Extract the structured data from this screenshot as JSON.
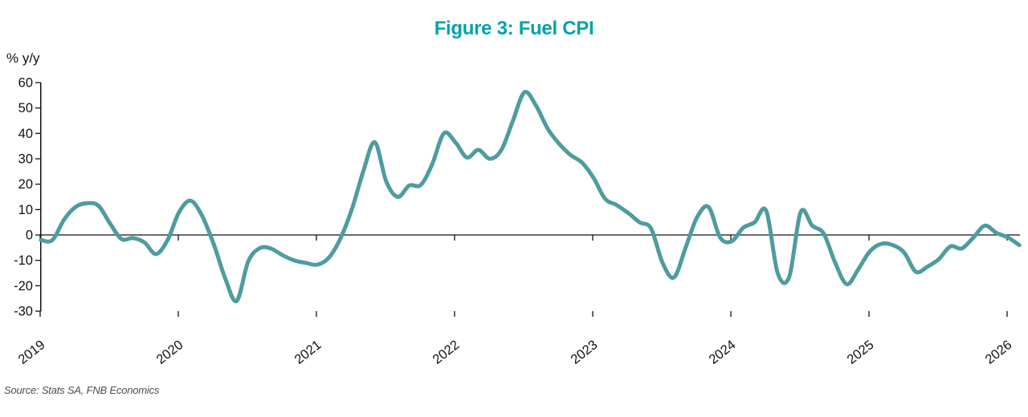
{
  "title": "Figure 3: Fuel CPI",
  "y_axis_label": "% y/y",
  "source": "Source: Stats SA, FNB Economics",
  "colors": {
    "title": "#00A3AD",
    "line": "#4E9C9E",
    "axis": "#111111",
    "source_text": "#4d4d4d"
  },
  "chart_data": {
    "type": "line",
    "title": "Figure 3: Fuel CPI",
    "ylabel": "% y/y",
    "ylim": [
      -30,
      60
    ],
    "y_ticks": [
      60,
      50,
      40,
      30,
      20,
      10,
      0,
      -10,
      -20,
      -30
    ],
    "x_tick_labels": [
      "2019",
      "2020",
      "2021",
      "2022",
      "2023",
      "2024",
      "2025",
      "2026"
    ],
    "grid": false,
    "legend_position": "none",
    "x_start": "2019-01",
    "x_frequency": "monthly",
    "series": [
      {
        "name": "Fuel CPI % y/y",
        "values": [
          -2,
          -2,
          6,
          11,
          12.5,
          11.5,
          4.5,
          -1.6,
          -1.2,
          -3,
          -7.5,
          -2,
          9,
          13.5,
          7.5,
          -3.5,
          -17,
          -26,
          -10.5,
          -5.2,
          -5.4,
          -8,
          -10,
          -11,
          -11.7,
          -9,
          -1.5,
          10,
          25,
          36.5,
          21,
          15,
          19.5,
          19.7,
          28,
          40,
          36.5,
          30.5,
          33.5,
          30,
          33.5,
          45,
          56.2,
          51,
          42,
          36,
          31.5,
          28.5,
          22.5,
          14.3,
          11.8,
          8.7,
          5,
          2.5,
          -11,
          -16.7,
          -5,
          7,
          11,
          -1,
          -2.5,
          2.8,
          5,
          9.5,
          -15,
          -16.5,
          9,
          3.7,
          0.5,
          -11,
          -19.4,
          -13.5,
          -6.5,
          -3.5,
          -4,
          -7,
          -14.5,
          -12.5,
          -9.5,
          -4.5,
          -5.3,
          -1,
          3.7,
          0.8,
          -1,
          -4
        ]
      }
    ]
  }
}
